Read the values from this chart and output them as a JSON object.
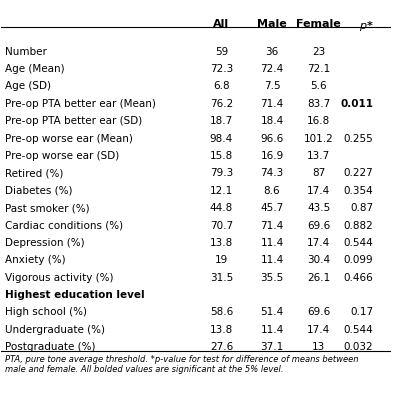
{
  "headers": [
    "",
    "All",
    "Male",
    "Female",
    "p*"
  ],
  "rows": [
    {
      "label": "Number",
      "all": "59",
      "male": "36",
      "female": "23",
      "p": "",
      "bold_p": false
    },
    {
      "label": "Age (Mean)",
      "all": "72.3",
      "male": "72.4",
      "female": "72.1",
      "p": "",
      "bold_p": false
    },
    {
      "label": "Age (SD)",
      "all": "6.8",
      "male": "7.5",
      "female": "5.6",
      "p": "",
      "bold_p": false
    },
    {
      "label": "Pre-op PTA better ear (Mean)",
      "all": "76.2",
      "male": "71.4",
      "female": "83.7",
      "p": "0.011",
      "bold_p": true
    },
    {
      "label": "Pre-op PTA better ear (SD)",
      "all": "18.7",
      "male": "18.4",
      "female": "16.8",
      "p": "",
      "bold_p": false
    },
    {
      "label": "Pre-op worse ear (Mean)",
      "all": "98.4",
      "male": "96.6",
      "female": "101.2",
      "p": "0.255",
      "bold_p": false
    },
    {
      "label": "Pre-op worse ear (SD)",
      "all": "15.8",
      "male": "16.9",
      "female": "13.7",
      "p": "",
      "bold_p": false
    },
    {
      "label": "Retired (%)",
      "all": "79.3",
      "male": "74.3",
      "female": "87",
      "p": "0.227",
      "bold_p": false
    },
    {
      "label": "Diabetes (%)",
      "all": "12.1",
      "male": "8.6",
      "female": "17.4",
      "p": "0.354",
      "bold_p": false
    },
    {
      "label": "Past smoker (%)",
      "all": "44.8",
      "male": "45.7",
      "female": "43.5",
      "p": "0.87",
      "bold_p": false
    },
    {
      "label": "Cardiac conditions (%)",
      "all": "70.7",
      "male": "71.4",
      "female": "69.6",
      "p": "0.882",
      "bold_p": false
    },
    {
      "label": "Depression (%)",
      "all": "13.8",
      "male": "11.4",
      "female": "17.4",
      "p": "0.544",
      "bold_p": false
    },
    {
      "label": "Anxiety (%)",
      "all": "19",
      "male": "11.4",
      "female": "30.4",
      "p": "0.099",
      "bold_p": false
    },
    {
      "label": "Vigorous activity (%)",
      "all": "31.5",
      "male": "35.5",
      "female": "26.1",
      "p": "0.466",
      "bold_p": false
    },
    {
      "label": "Highest education level",
      "all": "",
      "male": "",
      "female": "",
      "p": "",
      "bold_p": false,
      "section_header": true
    },
    {
      "label": "High school (%)",
      "all": "58.6",
      "male": "51.4",
      "female": "69.6",
      "p": "0.17",
      "bold_p": false
    },
    {
      "label": "Undergraduate (%)",
      "all": "13.8",
      "male": "11.4",
      "female": "17.4",
      "p": "0.544",
      "bold_p": false
    },
    {
      "label": "Postgraduate (%)",
      "all": "27.6",
      "male": "37.1",
      "female": "13",
      "p": "0.032",
      "bold_p": false
    }
  ],
  "footnote": "PTA, pure tone average threshold. *p-value for test for difference of means between\nmale and female. All bolded values are significant at the 5% level.",
  "bg_color": "#ffffff",
  "header_line_color": "#000000",
  "text_color": "#000000",
  "font_size": 7.5,
  "header_font_size": 8.0
}
